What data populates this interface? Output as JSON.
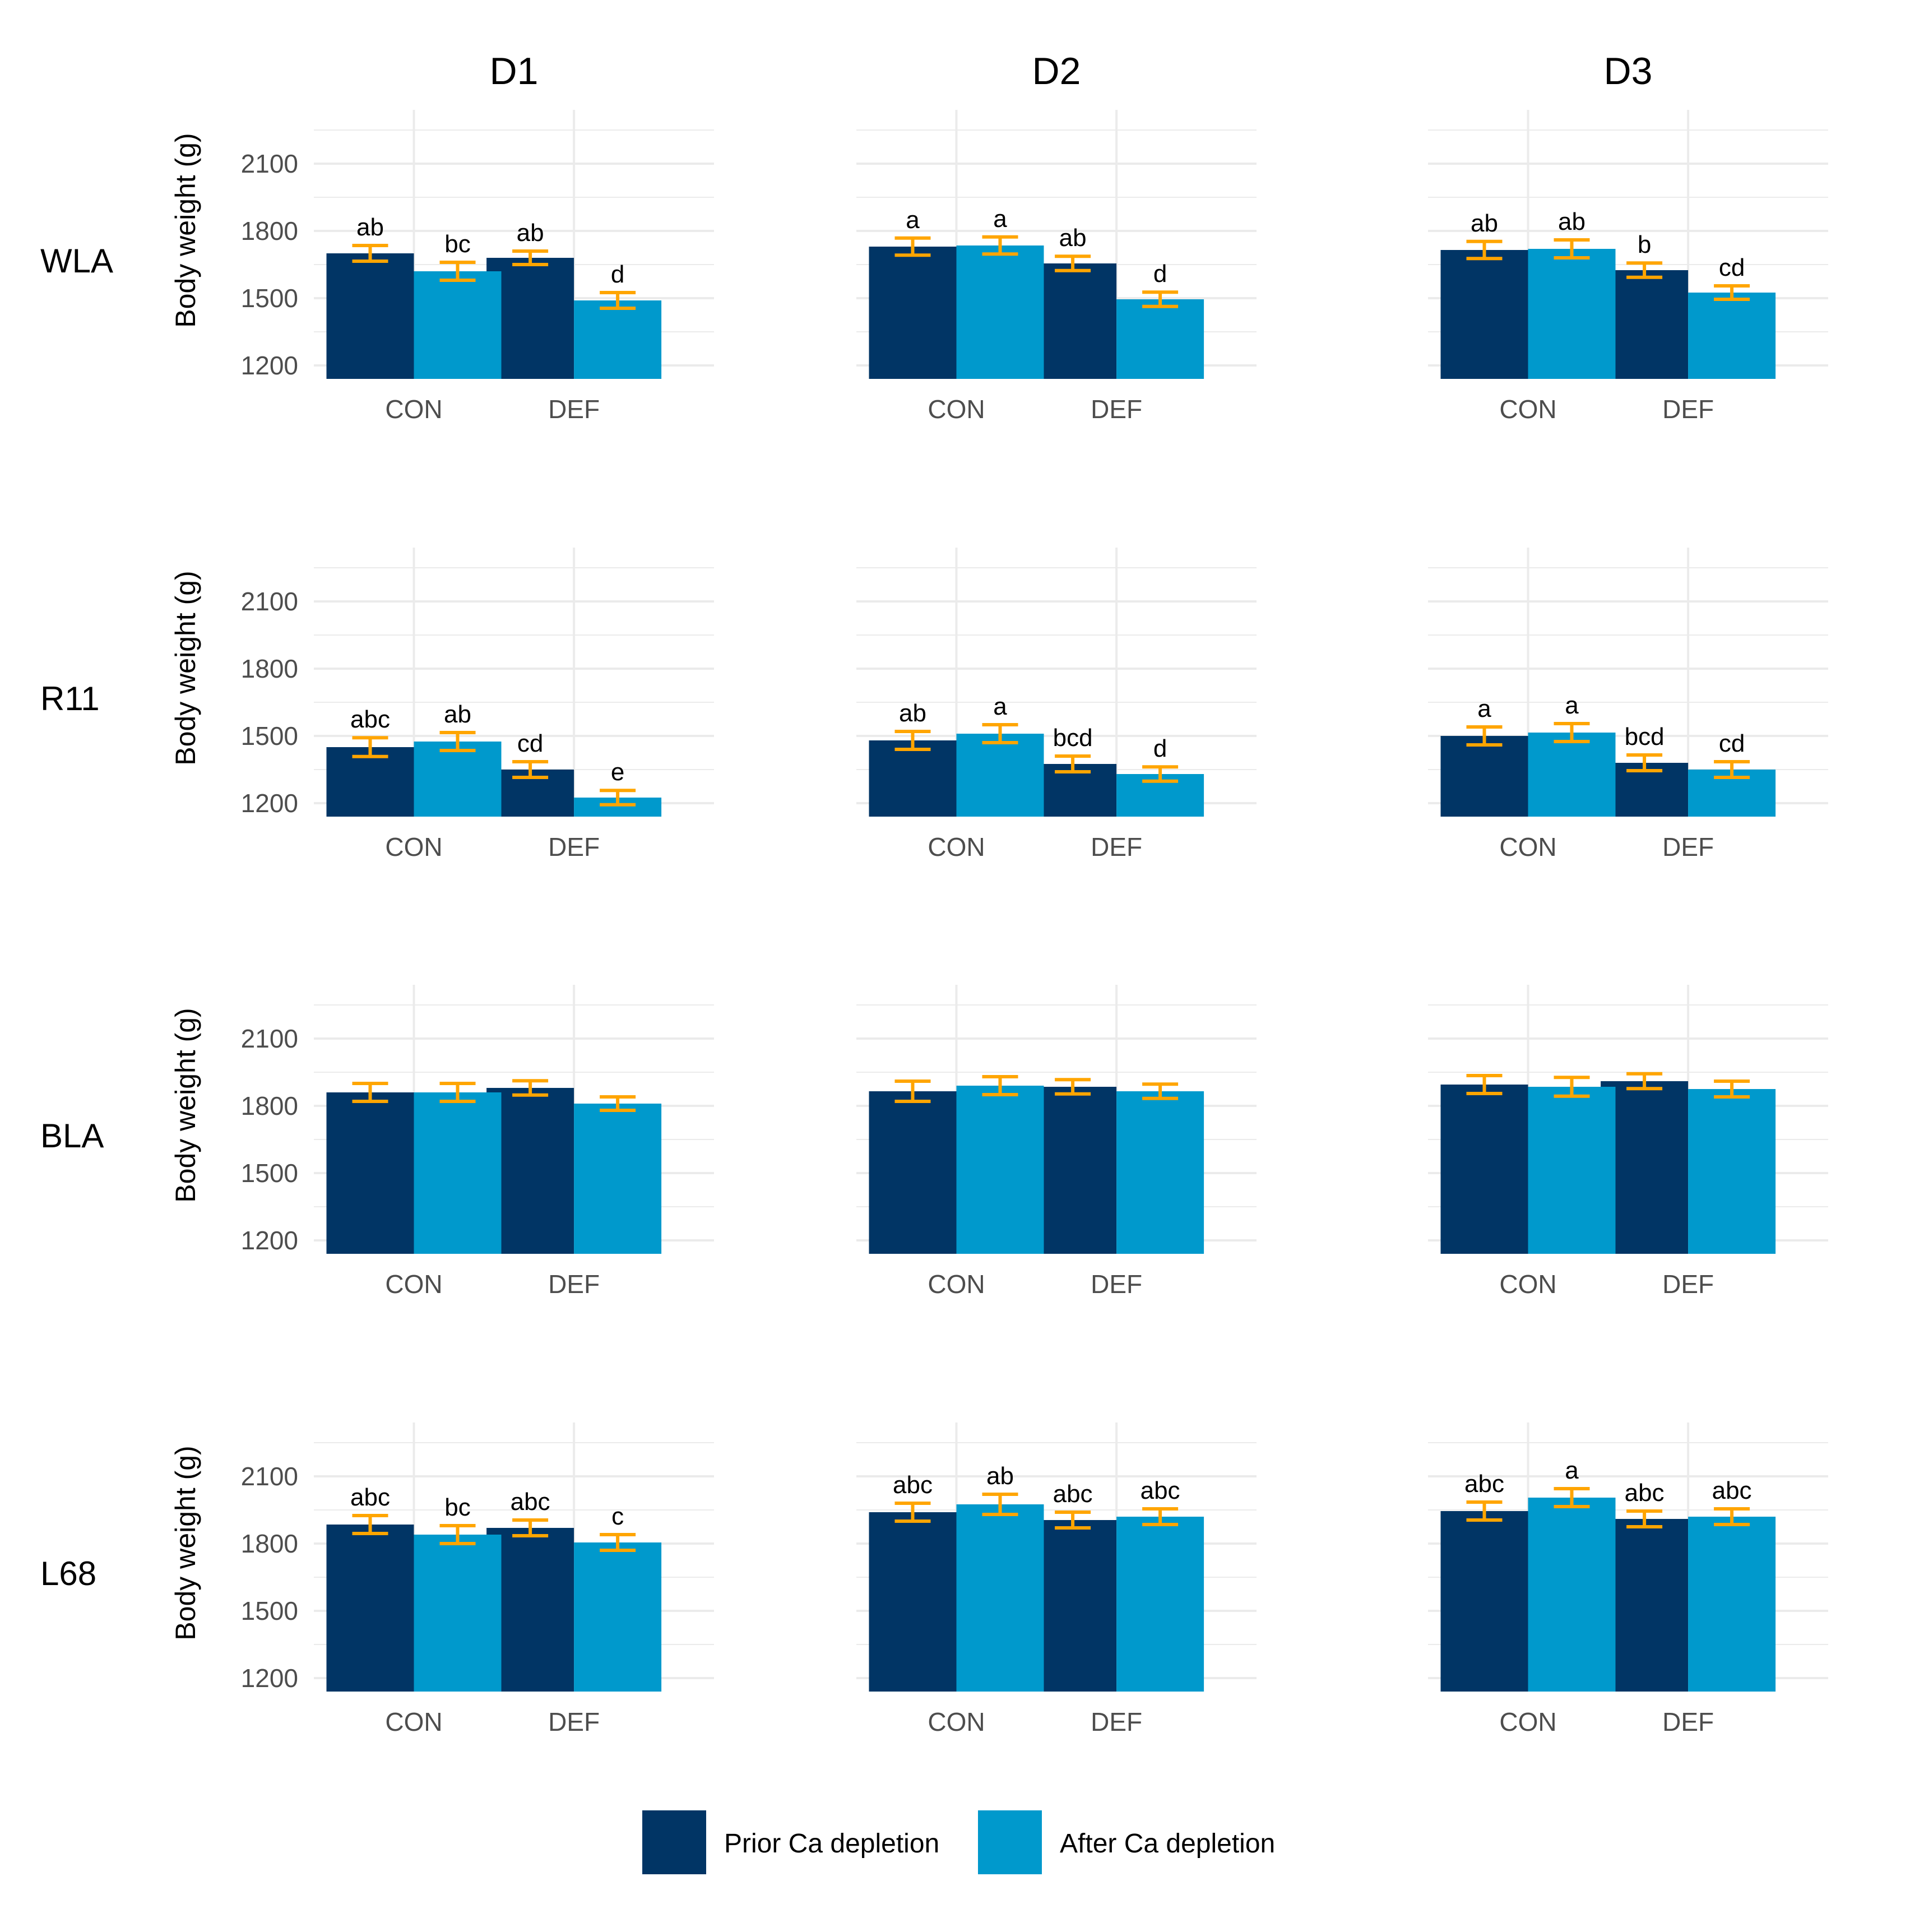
{
  "colors": {
    "prior": "#013565",
    "after": "#0099CC",
    "error_bar": "#FFA500",
    "grid": "#EBEBEB",
    "tick_text": "#4D4D4D",
    "text": "#000000"
  },
  "chart_data": {
    "type": "bar",
    "layout": "facet-grid 4 rows x 3 columns",
    "column_labels": [
      "D1",
      "D2",
      "D3"
    ],
    "row_labels": [
      "WLA",
      "R11",
      "BLA",
      "L68"
    ],
    "ylabel": "Body weight (g)",
    "xlabel": "",
    "categories": [
      "CON",
      "DEF"
    ],
    "yticks": [
      "1200",
      "1500",
      "1800",
      "2100"
    ],
    "ylim": [
      1140,
      2340
    ],
    "grid": true,
    "legend": {
      "position": "bottom",
      "entries": [
        {
          "name": "Prior Ca depletion",
          "color": "#013565"
        },
        {
          "name": "After Ca depletion",
          "color": "#0099CC"
        }
      ]
    },
    "panels": [
      {
        "row": "WLA",
        "col": "D1",
        "series": [
          {
            "name": "Prior Ca depletion",
            "values": [
              1700,
              1680
            ],
            "errors": [
              35,
              30
            ],
            "letters": [
              "ab",
              "ab"
            ]
          },
          {
            "name": "After Ca depletion",
            "values": [
              1620,
              1490
            ],
            "errors": [
              40,
              35
            ],
            "letters": [
              "bc",
              "d"
            ]
          }
        ]
      },
      {
        "row": "WLA",
        "col": "D2",
        "series": [
          {
            "name": "Prior Ca depletion",
            "values": [
              1730,
              1655
            ],
            "errors": [
              38,
              32
            ],
            "letters": [
              "a",
              "ab"
            ]
          },
          {
            "name": "After Ca depletion",
            "values": [
              1735,
              1495
            ],
            "errors": [
              38,
              32
            ],
            "letters": [
              "a",
              "d"
            ]
          }
        ]
      },
      {
        "row": "WLA",
        "col": "D3",
        "series": [
          {
            "name": "Prior Ca depletion",
            "values": [
              1715,
              1625
            ],
            "errors": [
              38,
              32
            ],
            "letters": [
              "ab",
              "b"
            ]
          },
          {
            "name": "After Ca depletion",
            "values": [
              1720,
              1525
            ],
            "errors": [
              40,
              30
            ],
            "letters": [
              "ab",
              "cd"
            ]
          }
        ]
      },
      {
        "row": "R11",
        "col": "D1",
        "series": [
          {
            "name": "Prior Ca depletion",
            "values": [
              1450,
              1350
            ],
            "errors": [
              42,
              35
            ],
            "letters": [
              "abc",
              "cd"
            ]
          },
          {
            "name": "After Ca depletion",
            "values": [
              1475,
              1225
            ],
            "errors": [
              40,
              32
            ],
            "letters": [
              "ab",
              "e"
            ]
          }
        ]
      },
      {
        "row": "R11",
        "col": "D2",
        "series": [
          {
            "name": "Prior Ca depletion",
            "values": [
              1480,
              1375
            ],
            "errors": [
              40,
              35
            ],
            "letters": [
              "ab",
              "bcd"
            ]
          },
          {
            "name": "After Ca depletion",
            "values": [
              1510,
              1330
            ],
            "errors": [
              40,
              32
            ],
            "letters": [
              "a",
              "d"
            ]
          }
        ]
      },
      {
        "row": "R11",
        "col": "D3",
        "series": [
          {
            "name": "Prior Ca depletion",
            "values": [
              1500,
              1380
            ],
            "errors": [
              40,
              35
            ],
            "letters": [
              "a",
              "bcd"
            ]
          },
          {
            "name": "After Ca depletion",
            "values": [
              1515,
              1350
            ],
            "errors": [
              40,
              35
            ],
            "letters": [
              "a",
              "cd"
            ]
          }
        ]
      },
      {
        "row": "BLA",
        "col": "D1",
        "series": [
          {
            "name": "Prior Ca depletion",
            "values": [
              1860,
              1880
            ],
            "errors": [
              40,
              32
            ],
            "letters": [
              "",
              ""
            ]
          },
          {
            "name": "After Ca depletion",
            "values": [
              1860,
              1810
            ],
            "errors": [
              40,
              30
            ],
            "letters": [
              "",
              ""
            ]
          }
        ]
      },
      {
        "row": "BLA",
        "col": "D2",
        "series": [
          {
            "name": "Prior Ca depletion",
            "values": [
              1865,
              1885
            ],
            "errors": [
              45,
              32
            ],
            "letters": [
              "",
              ""
            ]
          },
          {
            "name": "After Ca depletion",
            "values": [
              1890,
              1865
            ],
            "errors": [
              40,
              32
            ],
            "letters": [
              "",
              ""
            ]
          }
        ]
      },
      {
        "row": "BLA",
        "col": "D3",
        "series": [
          {
            "name": "Prior Ca depletion",
            "values": [
              1895,
              1910
            ],
            "errors": [
              40,
              33
            ],
            "letters": [
              "",
              ""
            ]
          },
          {
            "name": "After Ca depletion",
            "values": [
              1885,
              1875
            ],
            "errors": [
              42,
              35
            ],
            "letters": [
              "",
              ""
            ]
          }
        ]
      },
      {
        "row": "L68",
        "col": "D1",
        "series": [
          {
            "name": "Prior Ca depletion",
            "values": [
              1885,
              1870
            ],
            "errors": [
              40,
              35
            ],
            "letters": [
              "abc",
              "abc"
            ]
          },
          {
            "name": "After Ca depletion",
            "values": [
              1840,
              1805
            ],
            "errors": [
              40,
              35
            ],
            "letters": [
              "bc",
              "c"
            ]
          }
        ]
      },
      {
        "row": "L68",
        "col": "D2",
        "series": [
          {
            "name": "Prior Ca depletion",
            "values": [
              1940,
              1905
            ],
            "errors": [
              40,
              35
            ],
            "letters": [
              "abc",
              "abc"
            ]
          },
          {
            "name": "After Ca depletion",
            "values": [
              1975,
              1920
            ],
            "errors": [
              45,
              35
            ],
            "letters": [
              "ab",
              "abc"
            ]
          }
        ]
      },
      {
        "row": "L68",
        "col": "D3",
        "series": [
          {
            "name": "Prior Ca depletion",
            "values": [
              1945,
              1910
            ],
            "errors": [
              40,
              35
            ],
            "letters": [
              "abc",
              "abc"
            ]
          },
          {
            "name": "After Ca depletion",
            "values": [
              2005,
              1920
            ],
            "errors": [
              40,
              35
            ],
            "letters": [
              "a",
              "abc"
            ]
          }
        ]
      }
    ]
  }
}
